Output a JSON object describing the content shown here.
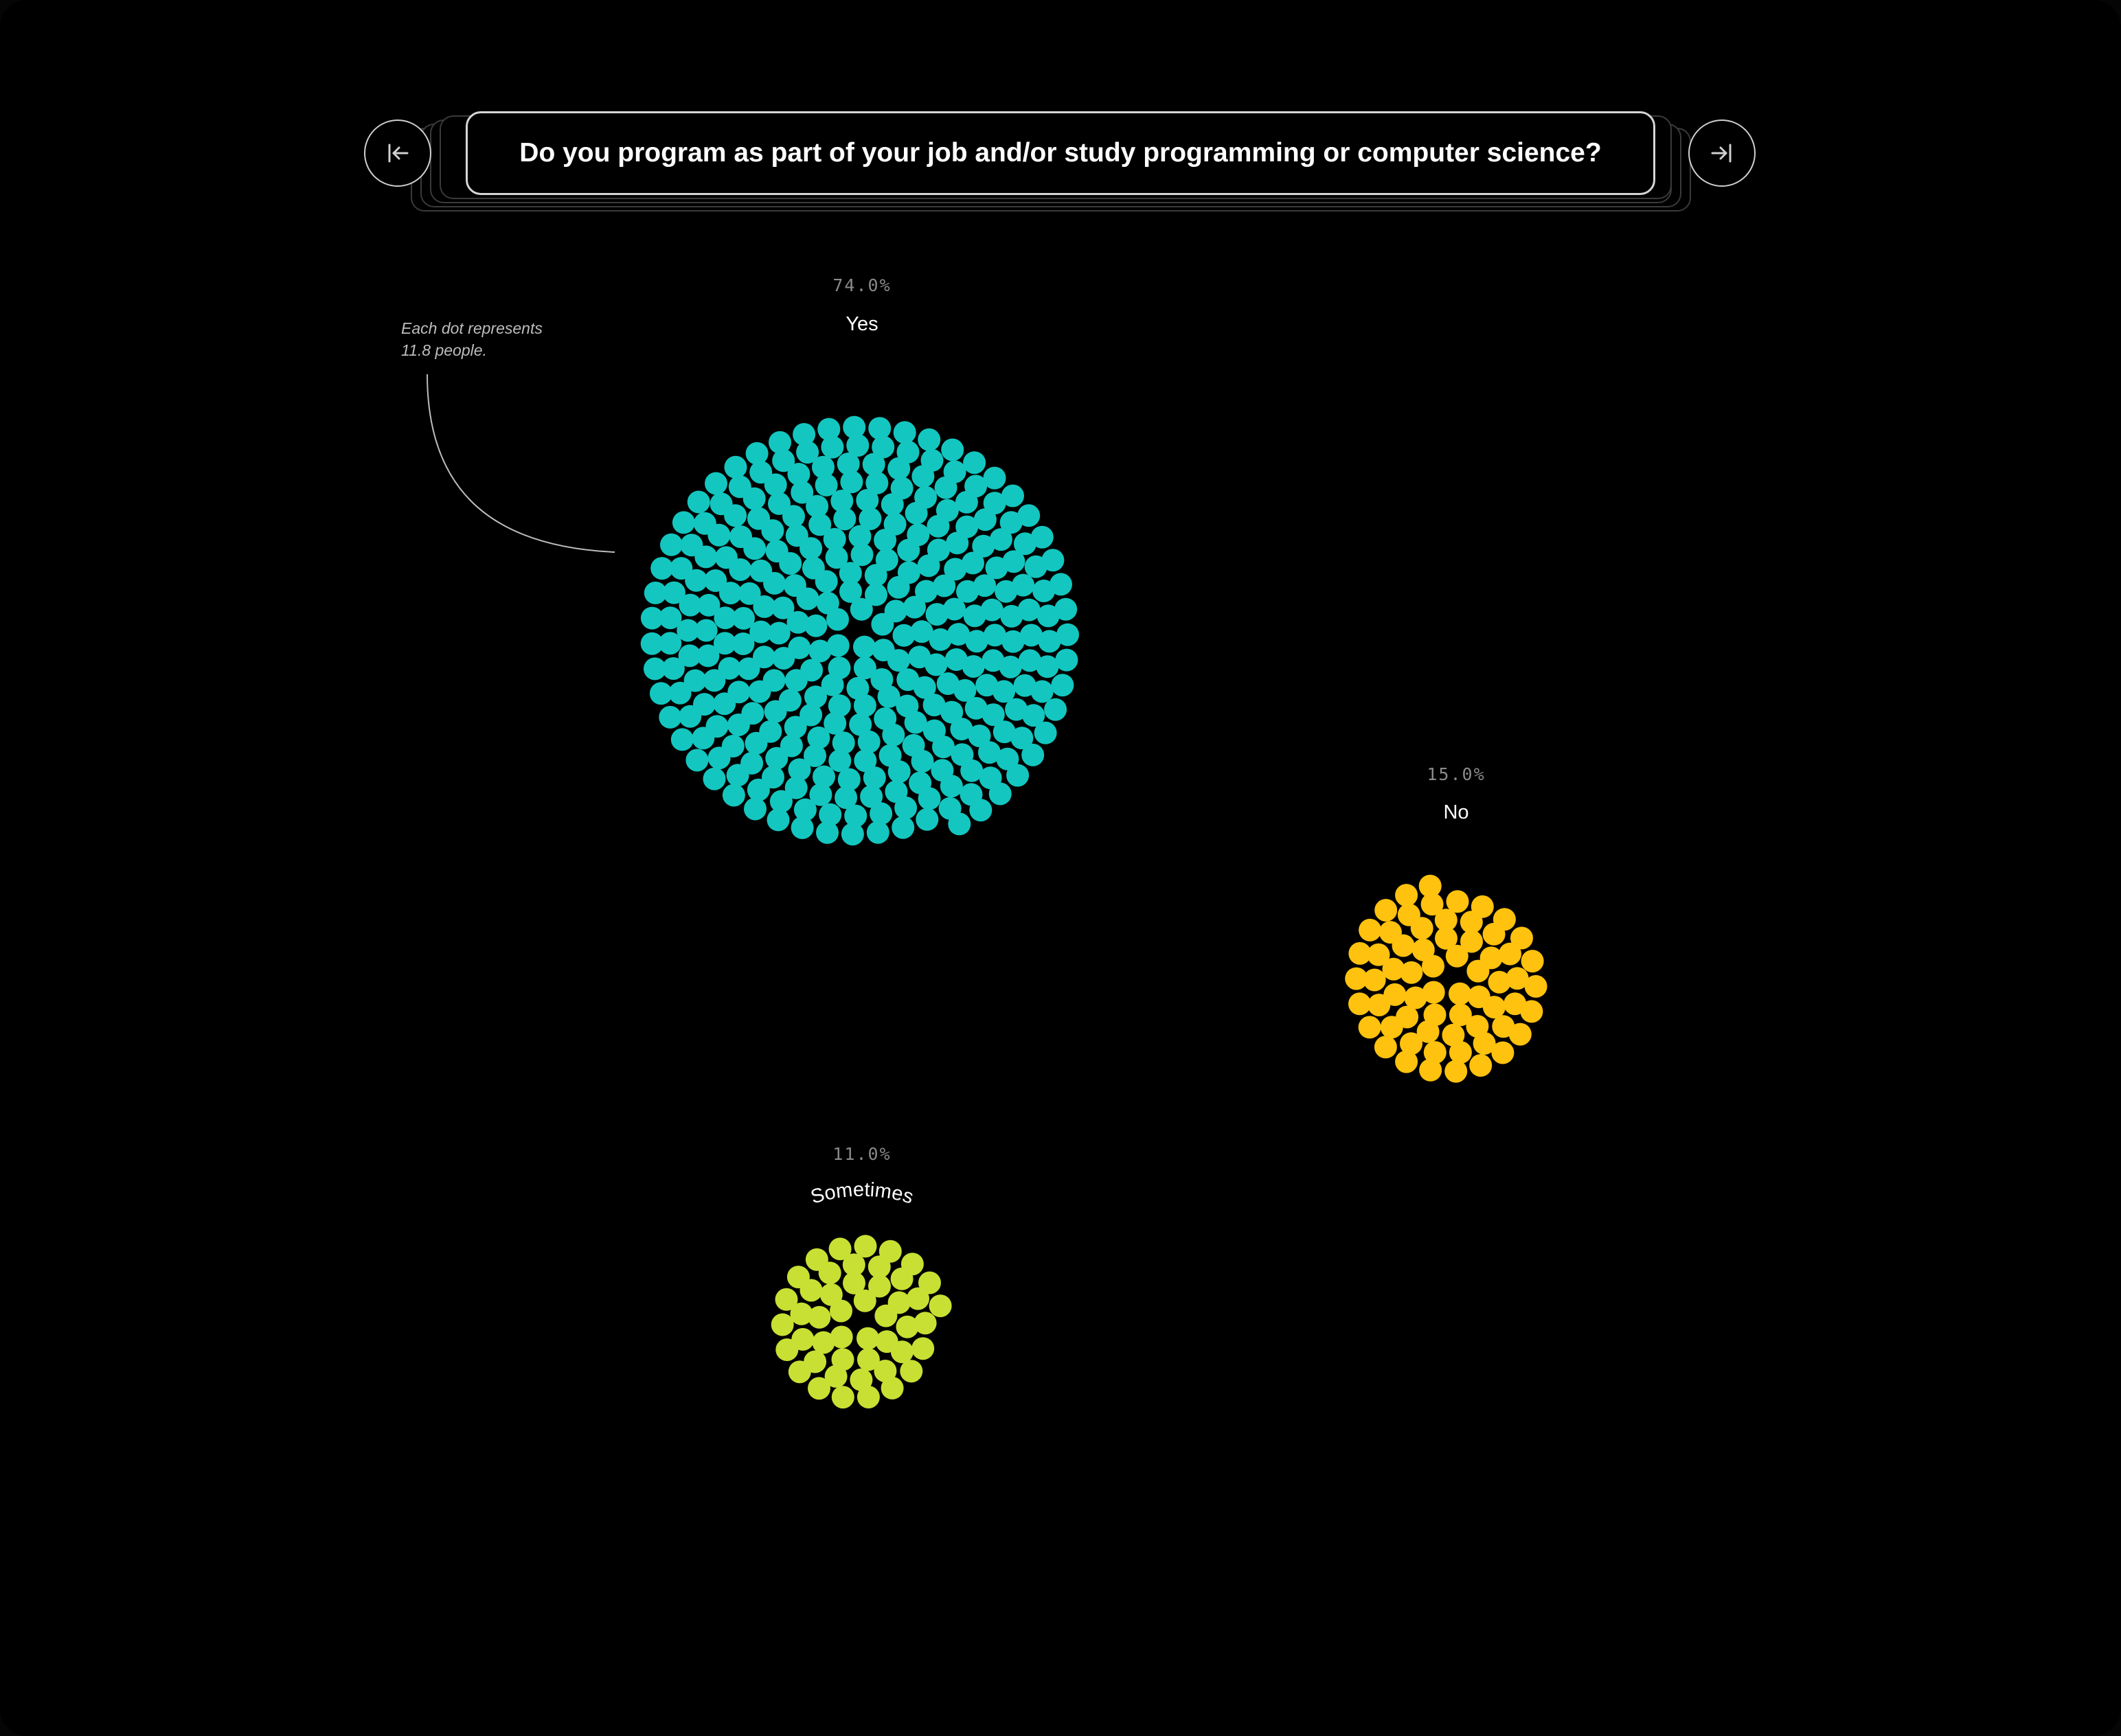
{
  "question": "Do you program as part of your job and/or study programming or computer science?",
  "navigation": {
    "prev_icon": "arrow-left-to-line-icon",
    "next_icon": "arrow-right-to-line-icon"
  },
  "annotation": {
    "line1": "Each dot represents",
    "line2": "11.8 people."
  },
  "chart_data": {
    "type": "dot-spiral",
    "people_per_dot": 11.8,
    "series": [
      {
        "name": "Yes",
        "percent_label": "74.0%",
        "value": 74.0,
        "color": "#13c7c0"
      },
      {
        "name": "No",
        "percent_label": "15.0%",
        "value": 15.0,
        "color": "#ffc20e"
      },
      {
        "name": "Sometimes",
        "percent_label": "11.0%",
        "value": 11.0,
        "color": "#c8e033"
      }
    ]
  }
}
